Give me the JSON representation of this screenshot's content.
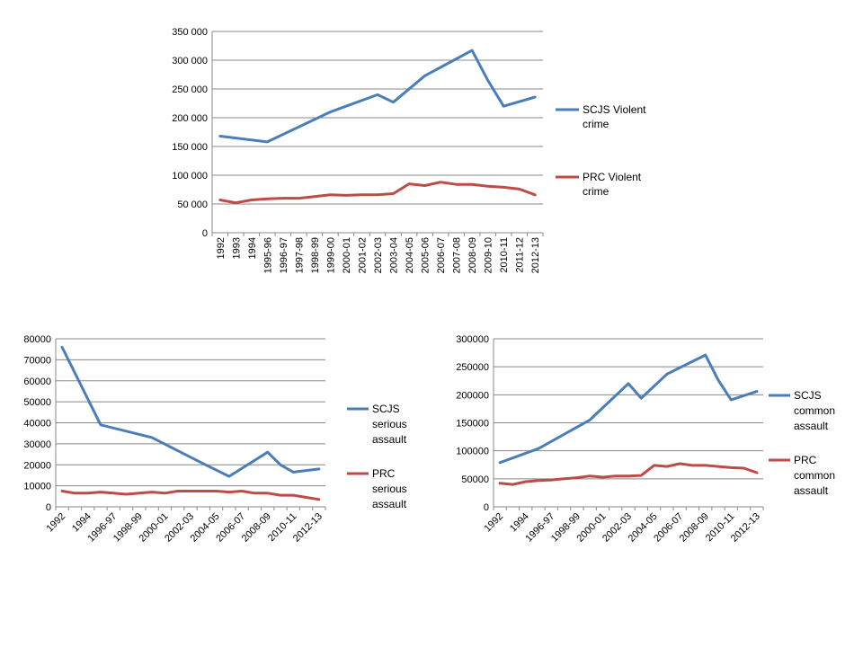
{
  "colors": {
    "scjs": "#4a7ebb",
    "prc": "#be4b48",
    "grid": "#888888",
    "axis": "#888888"
  },
  "chart_data": [
    {
      "type": "line",
      "ylim": [
        0,
        350000
      ],
      "y_ticks": [
        0,
        50000,
        100000,
        150000,
        200000,
        250000,
        300000,
        350000
      ],
      "y_tick_labels": [
        "0",
        "50 000",
        "100 000",
        "150 000",
        "200 000",
        "250 000",
        "300 000",
        "350 000"
      ],
      "categories": [
        "1992",
        "1993",
        "1994",
        "1995-96",
        "1996-97",
        "1997-98",
        "1998-99",
        "1999-00",
        "2000-01",
        "2001-02",
        "2002-03",
        "2003-04",
        "2004-05",
        "2005-06",
        "2006-07",
        "2007-08",
        "2008-09",
        "2009-10",
        "2010-11",
        "2011-12",
        "2012-13"
      ],
      "x_label_indices": [
        0,
        1,
        2,
        3,
        4,
        5,
        6,
        7,
        8,
        9,
        10,
        11,
        12,
        13,
        14,
        15,
        16,
        17,
        18,
        19,
        20
      ],
      "series": [
        {
          "name": "SCJS Violent crime",
          "legend_lines": [
            "SCJS Violent",
            "crime"
          ],
          "color_key": "scjs",
          "values": [
            168000,
            null,
            null,
            158000,
            null,
            null,
            null,
            210000,
            null,
            null,
            240000,
            227000,
            null,
            273000,
            null,
            null,
            317000,
            265000,
            220000,
            null,
            236000
          ]
        },
        {
          "name": "PRC Violent crime",
          "legend_lines": [
            "PRC Violent",
            "crime"
          ],
          "color_key": "prc",
          "values": [
            57000,
            52000,
            57000,
            59000,
            60000,
            60000,
            63000,
            66000,
            65000,
            66000,
            66000,
            68000,
            85000,
            82000,
            88000,
            84000,
            84000,
            81000,
            79000,
            76000,
            66000
          ]
        }
      ]
    },
    {
      "type": "line",
      "ylim": [
        0,
        80000
      ],
      "y_ticks": [
        0,
        10000,
        20000,
        30000,
        40000,
        50000,
        60000,
        70000,
        80000
      ],
      "y_tick_labels": [
        "0",
        "10000",
        "20000",
        "30000",
        "40000",
        "50000",
        "60000",
        "70000",
        "80000"
      ],
      "categories": [
        "1992",
        "1993",
        "1994",
        "1995-96",
        "1996-97",
        "1997-98",
        "1998-99",
        "1999-00",
        "2000-01",
        "2001-02",
        "2002-03",
        "2003-04",
        "2004-05",
        "2005-06",
        "2006-07",
        "2007-08",
        "2008-09",
        "2009-10",
        "2010-11",
        "2011-12",
        "2012-13"
      ],
      "x_label_indices": [
        0,
        2,
        4,
        6,
        8,
        10,
        12,
        14,
        16,
        18,
        20
      ],
      "series": [
        {
          "name": "SCJS serious assault",
          "legend_lines": [
            "SCJS",
            "serious",
            "assault"
          ],
          "color_key": "scjs",
          "values": [
            76000,
            null,
            null,
            39000,
            null,
            null,
            null,
            33000,
            null,
            null,
            null,
            20500,
            null,
            14500,
            null,
            null,
            26000,
            20000,
            16500,
            null,
            18000
          ]
        },
        {
          "name": "PRC serious assault",
          "legend_lines": [
            "PRC",
            "serious",
            "assault"
          ],
          "color_key": "prc",
          "values": [
            7500,
            6500,
            6500,
            7000,
            6500,
            6000,
            6500,
            7000,
            6500,
            7500,
            7500,
            7500,
            7500,
            7000,
            7500,
            6500,
            6500,
            5500,
            5500,
            4500,
            3500
          ]
        }
      ]
    },
    {
      "type": "line",
      "ylim": [
        0,
        300000
      ],
      "y_ticks": [
        0,
        50000,
        100000,
        150000,
        200000,
        250000,
        300000
      ],
      "y_tick_labels": [
        "0",
        "50000",
        "100000",
        "150000",
        "200000",
        "250000",
        "300000"
      ],
      "categories": [
        "1992",
        "1993",
        "1994",
        "1995-96",
        "1996-97",
        "1997-98",
        "1998-99",
        "1999-00",
        "2000-01",
        "2001-02",
        "2002-03",
        "2003-04",
        "2004-05",
        "2005-06",
        "2006-07",
        "2007-08",
        "2008-09",
        "2009-10",
        "2010-11",
        "2011-12",
        "2012-13"
      ],
      "x_label_indices": [
        0,
        2,
        4,
        6,
        8,
        10,
        12,
        14,
        16,
        18,
        20
      ],
      "series": [
        {
          "name": "SCJS common assault",
          "legend_lines": [
            "SCJS",
            "common",
            "assault"
          ],
          "color_key": "scjs",
          "values": [
            79000,
            null,
            null,
            104000,
            null,
            null,
            null,
            155000,
            null,
            null,
            220000,
            194000,
            null,
            237000,
            null,
            null,
            271000,
            226000,
            191000,
            null,
            206000
          ]
        },
        {
          "name": "PRC common assault",
          "legend_lines": [
            "PRC",
            "common",
            "assault"
          ],
          "color_key": "prc",
          "values": [
            42000,
            40000,
            45000,
            47000,
            48000,
            50000,
            52000,
            55000,
            53000,
            55000,
            55000,
            56000,
            74000,
            72000,
            77000,
            74000,
            74000,
            72000,
            70000,
            69000,
            61000
          ]
        }
      ]
    }
  ]
}
